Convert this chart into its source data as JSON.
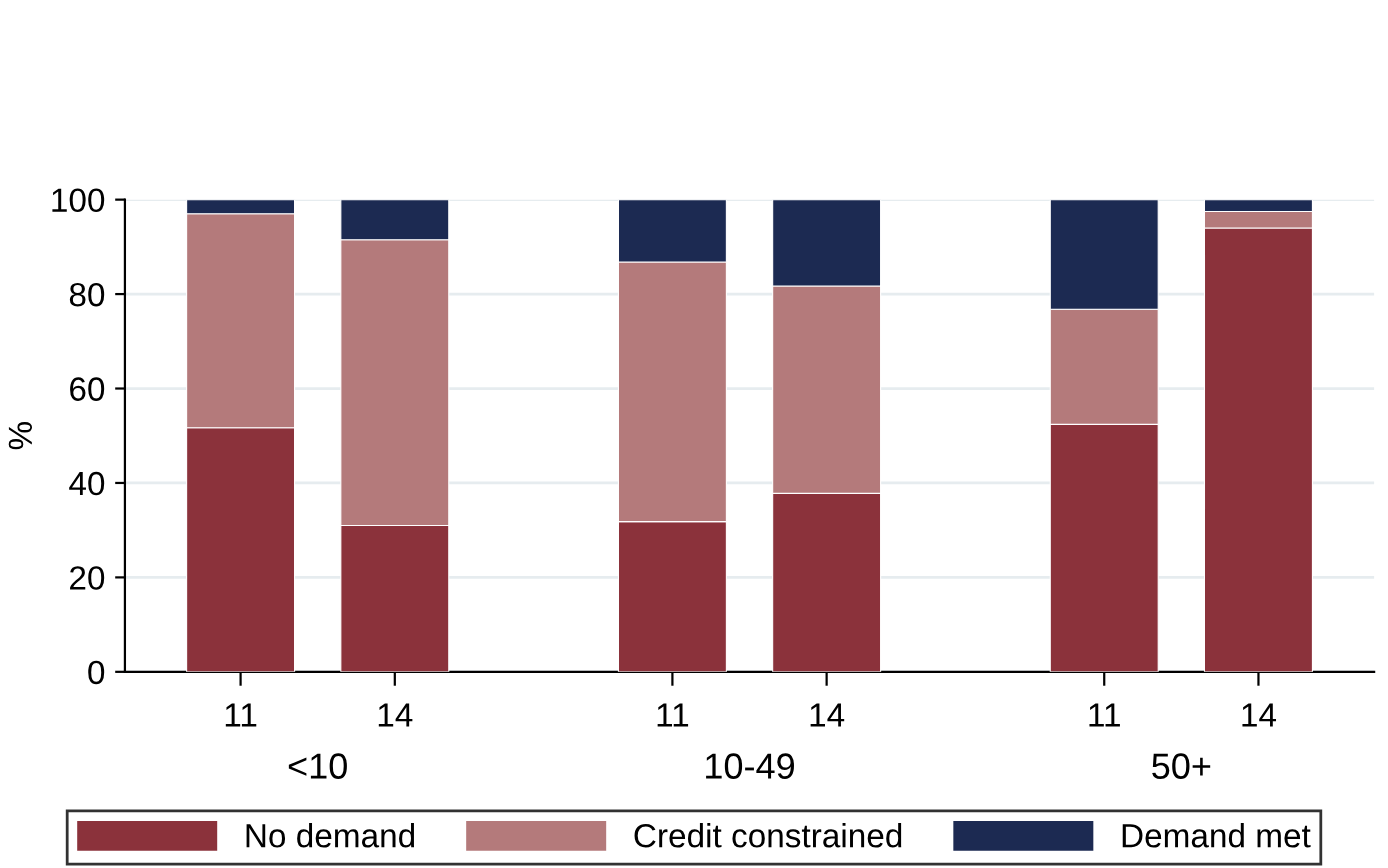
{
  "chart_data": {
    "type": "bar",
    "stacked": true,
    "ylabel": "%",
    "categories": [
      "11",
      "14",
      "11",
      "14",
      "11",
      "14"
    ],
    "annotations": [
      "<10",
      "10-49",
      "50+"
    ],
    "series": [
      {
        "name": "No demand",
        "color": "#8b323b",
        "values": [
          51.7,
          31,
          31.8,
          37.8,
          52.4,
          94
        ]
      },
      {
        "name": "Credit constrained",
        "color": "#b47a7b",
        "values": [
          45.3,
          60.5,
          55,
          43.9,
          24.4,
          3.5
        ]
      },
      {
        "name": "Demand met",
        "color": "#1c2a52",
        "values": [
          3,
          8.5,
          13.2,
          18.3,
          23.2,
          2.5
        ]
      }
    ],
    "ylim": [
      0,
      100
    ],
    "yticks": [
      0,
      20,
      40,
      60,
      80,
      100
    ],
    "grid": "y",
    "legend": "bottom"
  }
}
